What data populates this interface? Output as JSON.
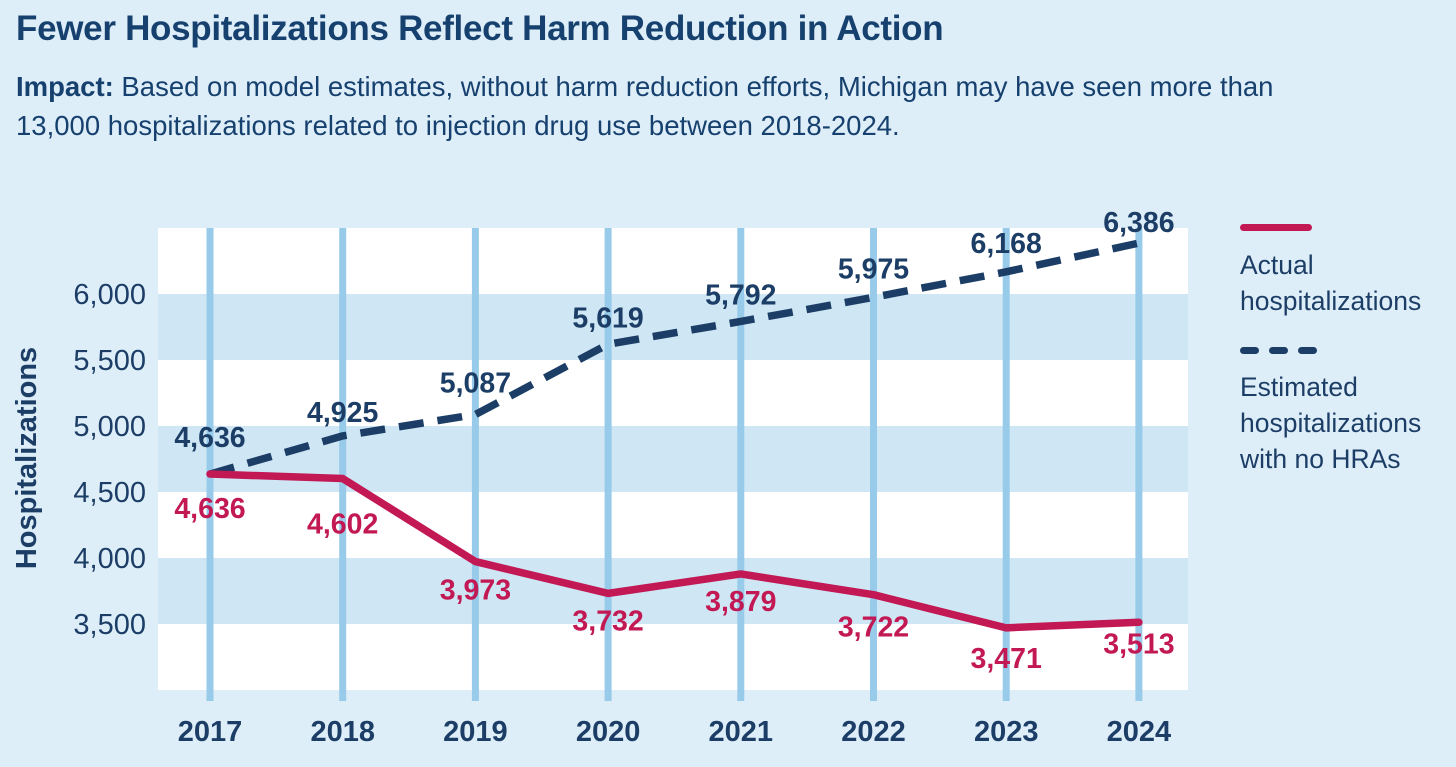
{
  "header": {
    "title": "Fewer Hospitalizations Reflect Harm Reduction in Action",
    "impact_label": "Impact:",
    "impact_line1_rest": " Based on model estimates, without harm reduction efforts, Michigan may have seen more than",
    "impact_line2": "13,000 hospitalizations related to injection drug use between 2018-2024."
  },
  "colors": {
    "background": "#deeef9",
    "plot_background": "#ffffff",
    "band": "#cfe6f5",
    "gridline": "#97cbe9",
    "navy": "#1c3e66",
    "crimson": "#c21853",
    "title_navy": "#16406e"
  },
  "legend": {
    "items": [
      {
        "name": "actual",
        "label": "Actual hospitalizations",
        "style": "solid",
        "color": "#c21853"
      },
      {
        "name": "estimated",
        "label": "Estimated hospitalizations with no HRAs",
        "style": "dashed",
        "color": "#1c3e66"
      }
    ]
  },
  "chart_data": {
    "type": "line",
    "title": "Fewer Hospitalizations Reflect Harm Reduction in Action",
    "x": [
      2017,
      2018,
      2019,
      2020,
      2021,
      2022,
      2023,
      2024
    ],
    "series": [
      {
        "name": "Actual hospitalizations",
        "style": "solid",
        "color": "#c21853",
        "values": [
          4636,
          4602,
          3973,
          3732,
          3879,
          3722,
          3471,
          3513
        ]
      },
      {
        "name": "Estimated hospitalizations with no HRAs",
        "style": "dashed",
        "color": "#1c3e66",
        "values": [
          4636,
          4925,
          5087,
          5619,
          5792,
          5975,
          6168,
          6386
        ]
      }
    ],
    "xlabel": "",
    "ylabel": "Hospitalizations",
    "yticks": [
      3500,
      4000,
      4500,
      5000,
      5500,
      6000
    ],
    "ylim": [
      3000,
      6500
    ],
    "grid": "vertical gridlines per year, horizontal alternating blue bands every 500 units",
    "legend_position": "right",
    "data_labels": true
  }
}
